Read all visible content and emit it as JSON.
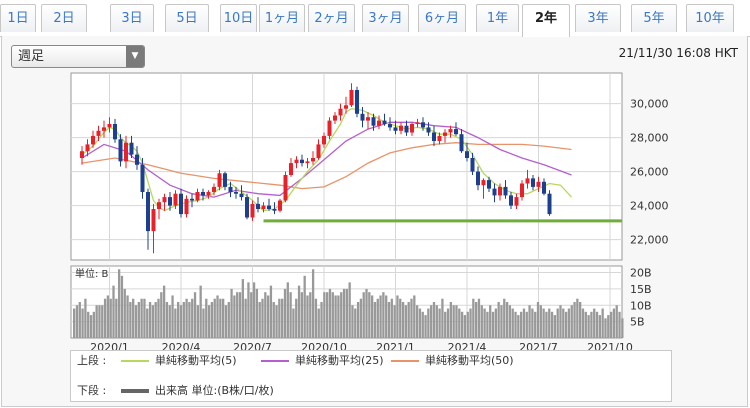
{
  "tabs": [
    {
      "label": "1日",
      "active": false
    },
    {
      "label": "2日",
      "active": false
    },
    {
      "label": "3日",
      "active": false
    },
    {
      "label": "5日",
      "active": false
    },
    {
      "label": "10日",
      "active": false
    },
    {
      "label": "1ヶ月",
      "active": false
    },
    {
      "label": "2ヶ月",
      "active": false
    },
    {
      "label": "3ヶ月",
      "active": false
    },
    {
      "label": "6ヶ月",
      "active": false
    },
    {
      "label": "1年",
      "active": false
    },
    {
      "label": "2年",
      "active": true
    },
    {
      "label": "3年",
      "active": false
    },
    {
      "label": "5年",
      "active": false
    },
    {
      "label": "10年",
      "active": false
    }
  ],
  "period_select": {
    "value": "週足"
  },
  "timestamp": "21/11/30 16:08 HKT",
  "legend": {
    "upper_label": "上段 :",
    "lower_label": "下段 :",
    "ma5": "単純移動平均(5)",
    "ma25": "単純移動平均(25)",
    "ma50": "単純移動平均(50)",
    "volume": "出来高 単位:(B株/口/枚)"
  },
  "colors": {
    "candle_up": "#e8202a",
    "candle_down": "#1c3f8f",
    "ma5": "#b7d85c",
    "ma25": "#b45fcf",
    "ma50": "#e7946a",
    "support_line": "#6fae3a",
    "volume": "#999999",
    "accent": "#3b78c4"
  },
  "chart_data": [
    {
      "type": "candlestick",
      "title": "",
      "x_tick_labels": [
        "2020/1",
        "2020/4",
        "2020/7",
        "2020/10",
        "2021/1",
        "2021/4",
        "2021/7",
        "2021/10"
      ],
      "x_tick_weeks": [
        5,
        18,
        31,
        44,
        57,
        70,
        83,
        96
      ],
      "y_tick_labels": [
        "30,000",
        "28,000",
        "26,000",
        "24,000",
        "22,000"
      ],
      "y_ticks": [
        30000,
        28000,
        26000,
        24000,
        22000
      ],
      "ylim": [
        20800,
        31800
      ],
      "grid": true,
      "support_line": {
        "value": 23100,
        "from_week": 33,
        "to_week": 108
      },
      "ohlc": [
        [
          26800,
          27500,
          26400,
          27200
        ],
        [
          27200,
          27900,
          26900,
          27600
        ],
        [
          27600,
          28400,
          27400,
          28100
        ],
        [
          28100,
          28700,
          27800,
          28400
        ],
        [
          28400,
          29000,
          28000,
          28600
        ],
        [
          28600,
          29200,
          28300,
          28800
        ],
        [
          28800,
          29100,
          27700,
          27900
        ],
        [
          27900,
          28200,
          26300,
          26600
        ],
        [
          26600,
          28100,
          26200,
          27700
        ],
        [
          27700,
          28100,
          26800,
          27000
        ],
        [
          27000,
          27500,
          26100,
          26400
        ],
        [
          26400,
          26800,
          24400,
          24800
        ],
        [
          24800,
          25000,
          21400,
          22500
        ],
        [
          22500,
          24100,
          21200,
          23800
        ],
        [
          23800,
          24400,
          23200,
          24200
        ],
        [
          24200,
          24700,
          23700,
          24500
        ],
        [
          24500,
          24800,
          23700,
          24000
        ],
        [
          24000,
          24900,
          23800,
          24700
        ],
        [
          24700,
          25000,
          23300,
          23500
        ],
        [
          23500,
          24600,
          23300,
          24400
        ],
        [
          24400,
          24700,
          23900,
          24300
        ],
        [
          24300,
          25000,
          24200,
          24800
        ],
        [
          24800,
          25000,
          24300,
          24600
        ],
        [
          24600,
          24900,
          24400,
          24800
        ],
        [
          24800,
          25300,
          24600,
          25100
        ],
        [
          25100,
          26100,
          24900,
          25900
        ],
        [
          25900,
          26000,
          24900,
          25100
        ],
        [
          25100,
          25400,
          24500,
          24800
        ],
        [
          24800,
          25100,
          24400,
          24700
        ],
        [
          24700,
          25200,
          24300,
          24500
        ],
        [
          24500,
          24700,
          23200,
          23300
        ],
        [
          23300,
          24300,
          23100,
          24100
        ],
        [
          24100,
          24500,
          23600,
          23800
        ],
        [
          23800,
          24200,
          23600,
          24000
        ],
        [
          24000,
          24400,
          23700,
          23800
        ],
        [
          23800,
          24200,
          23500,
          23700
        ],
        [
          23700,
          24400,
          23600,
          24300
        ],
        [
          24300,
          26000,
          24200,
          25800
        ],
        [
          25800,
          26800,
          25700,
          26500
        ],
        [
          26500,
          26900,
          26200,
          26700
        ],
        [
          26700,
          27000,
          26300,
          26500
        ],
        [
          26500,
          26800,
          26200,
          26600
        ],
        [
          26600,
          27200,
          26400,
          26800
        ],
        [
          26800,
          27900,
          26700,
          27600
        ],
        [
          27600,
          28300,
          27400,
          28100
        ],
        [
          28100,
          29200,
          27900,
          29000
        ],
        [
          29000,
          29500,
          28800,
          29300
        ],
        [
          29300,
          30000,
          29000,
          29700
        ],
        [
          29700,
          30400,
          29400,
          29900
        ],
        [
          29900,
          31200,
          29800,
          30800
        ],
        [
          30800,
          31000,
          29200,
          29400
        ],
        [
          29400,
          29800,
          28600,
          29000
        ],
        [
          29000,
          29500,
          28500,
          29200
        ],
        [
          29200,
          29400,
          28400,
          28700
        ],
        [
          28700,
          29300,
          28500,
          29000
        ],
        [
          29000,
          29400,
          28700,
          28800
        ],
        [
          28800,
          29200,
          28400,
          28600
        ],
        [
          28600,
          29000,
          28200,
          28400
        ],
        [
          28400,
          28900,
          28200,
          28700
        ],
        [
          28700,
          29000,
          28100,
          28300
        ],
        [
          28300,
          28900,
          28100,
          28800
        ],
        [
          28800,
          29100,
          28600,
          28900
        ],
        [
          28900,
          29200,
          28400,
          28600
        ],
        [
          28600,
          28900,
          28100,
          28300
        ],
        [
          28300,
          28700,
          27500,
          27800
        ],
        [
          27800,
          28300,
          27600,
          28100
        ],
        [
          28100,
          28500,
          27700,
          28300
        ],
        [
          28300,
          28700,
          28000,
          28500
        ],
        [
          28500,
          28900,
          28100,
          28200
        ],
        [
          28200,
          28500,
          27100,
          27200
        ],
        [
          27200,
          27700,
          26600,
          26800
        ],
        [
          26800,
          27100,
          25800,
          26000
        ],
        [
          26000,
          26300,
          24900,
          25200
        ],
        [
          25200,
          25600,
          24400,
          25500
        ],
        [
          25500,
          25700,
          24800,
          25000
        ],
        [
          25000,
          25300,
          24200,
          24600
        ],
        [
          24600,
          25300,
          24300,
          25100
        ],
        [
          25100,
          25500,
          24400,
          24600
        ],
        [
          24600,
          24800,
          23800,
          24000
        ],
        [
          24000,
          24700,
          23800,
          24500
        ],
        [
          24500,
          25500,
          24300,
          25300
        ],
        [
          25300,
          26100,
          25000,
          25600
        ],
        [
          25600,
          25800,
          24900,
          25100
        ],
        [
          25100,
          25700,
          24800,
          25400
        ],
        [
          25400,
          25600,
          24600,
          24700
        ],
        [
          24700,
          24900,
          23400,
          23500
        ]
      ],
      "ma5": [
        [
          0,
          27000
        ],
        [
          2,
          27500
        ],
        [
          4,
          28300
        ],
        [
          5,
          28600
        ],
        [
          6,
          28500
        ],
        [
          7,
          28000
        ],
        [
          8,
          27700
        ],
        [
          9,
          27500
        ],
        [
          10,
          27200
        ],
        [
          11,
          26500
        ],
        [
          12,
          25400
        ],
        [
          13,
          24300
        ],
        [
          14,
          23900
        ],
        [
          15,
          23700
        ],
        [
          17,
          24000
        ],
        [
          19,
          24200
        ],
        [
          21,
          24300
        ],
        [
          23,
          24500
        ],
        [
          25,
          25000
        ],
        [
          27,
          25300
        ],
        [
          29,
          24800
        ],
        [
          31,
          24300
        ],
        [
          33,
          23700
        ],
        [
          35,
          23800
        ],
        [
          37,
          24300
        ],
        [
          39,
          25200
        ],
        [
          41,
          26000
        ],
        [
          43,
          26700
        ],
        [
          45,
          27800
        ],
        [
          47,
          28800
        ],
        [
          48,
          29500
        ],
        [
          49,
          29700
        ],
        [
          51,
          29600
        ],
        [
          53,
          29300
        ],
        [
          55,
          28900
        ],
        [
          57,
          28700
        ],
        [
          59,
          28500
        ],
        [
          61,
          28600
        ],
        [
          63,
          28500
        ],
        [
          65,
          28200
        ],
        [
          67,
          28200
        ],
        [
          69,
          27900
        ],
        [
          71,
          27000
        ],
        [
          73,
          25900
        ],
        [
          75,
          25300
        ],
        [
          77,
          24900
        ],
        [
          79,
          24700
        ],
        [
          81,
          24700
        ],
        [
          83,
          25000
        ],
        [
          85,
          25300
        ],
        [
          87,
          25200
        ],
        [
          89,
          24500
        ]
      ],
      "ma25": [
        [
          0,
          26800
        ],
        [
          4,
          27600
        ],
        [
          8,
          27200
        ],
        [
          12,
          26100
        ],
        [
          16,
          25200
        ],
        [
          20,
          24700
        ],
        [
          24,
          24500
        ],
        [
          28,
          24900
        ],
        [
          32,
          24700
        ],
        [
          36,
          24600
        ],
        [
          40,
          25600
        ],
        [
          44,
          26700
        ],
        [
          48,
          27800
        ],
        [
          52,
          28500
        ],
        [
          56,
          28900
        ],
        [
          60,
          28900
        ],
        [
          64,
          28700
        ],
        [
          68,
          28600
        ],
        [
          72,
          28000
        ],
        [
          76,
          27300
        ],
        [
          80,
          26800
        ],
        [
          84,
          26400
        ],
        [
          89,
          25800
        ]
      ],
      "ma50": [
        [
          0,
          26500
        ],
        [
          6,
          26800
        ],
        [
          12,
          26400
        ],
        [
          18,
          25900
        ],
        [
          24,
          25600
        ],
        [
          30,
          25400
        ],
        [
          36,
          25200
        ],
        [
          40,
          25000
        ],
        [
          44,
          25100
        ],
        [
          48,
          25700
        ],
        [
          52,
          26500
        ],
        [
          56,
          27100
        ],
        [
          60,
          27400
        ],
        [
          64,
          27600
        ],
        [
          68,
          27700
        ],
        [
          72,
          27600
        ],
        [
          76,
          27600
        ],
        [
          80,
          27600
        ],
        [
          84,
          27500
        ],
        [
          89,
          27300
        ]
      ]
    },
    {
      "type": "bar",
      "title": "",
      "ylabel": "単位: B",
      "y_tick_labels": [
        "20B",
        "15B",
        "10B",
        "5B"
      ],
      "y_ticks": [
        20,
        15,
        10,
        5
      ],
      "ylim": [
        0,
        22
      ],
      "values": [
        9,
        10,
        11,
        9,
        12,
        8,
        7,
        8,
        10,
        10,
        10,
        12,
        13,
        12,
        16,
        12,
        21,
        19,
        15,
        13,
        11,
        12,
        10,
        11,
        12,
        12,
        9,
        11,
        10,
        11,
        12,
        14,
        16,
        11,
        10,
        13,
        9,
        11,
        10,
        11,
        12,
        11,
        12,
        14,
        10,
        16,
        9,
        12,
        10,
        11,
        12,
        13,
        12,
        12,
        10,
        11,
        15,
        13,
        14,
        14,
        18,
        12,
        17,
        14,
        17,
        15,
        11,
        12,
        14,
        13,
        16,
        11,
        10,
        12,
        12,
        15,
        17,
        14,
        9,
        12,
        16,
        14,
        19,
        13,
        14,
        21,
        12,
        9,
        11,
        14,
        14,
        15,
        14,
        13,
        13,
        14,
        15,
        15,
        17,
        10,
        9,
        11,
        12,
        14,
        15,
        14,
        13,
        11,
        12,
        13,
        14,
        13,
        11,
        12,
        10,
        13,
        12,
        11,
        10,
        11,
        12,
        13,
        10,
        9,
        8,
        7,
        9,
        10,
        11,
        10,
        9,
        12,
        8,
        9,
        11,
        10,
        10,
        9,
        8,
        7,
        8,
        9,
        12,
        11,
        12,
        10,
        9,
        8,
        10,
        8,
        9,
        11,
        10,
        12,
        11,
        10,
        9,
        8,
        7,
        8,
        9,
        8,
        10,
        9,
        8,
        11,
        10,
        9,
        8,
        9,
        8,
        7,
        9,
        10,
        9,
        8,
        9,
        10,
        11,
        12,
        11,
        9,
        8,
        7,
        8,
        9,
        8,
        7,
        9,
        6,
        7,
        8,
        9,
        10,
        8,
        6
      ]
    }
  ]
}
